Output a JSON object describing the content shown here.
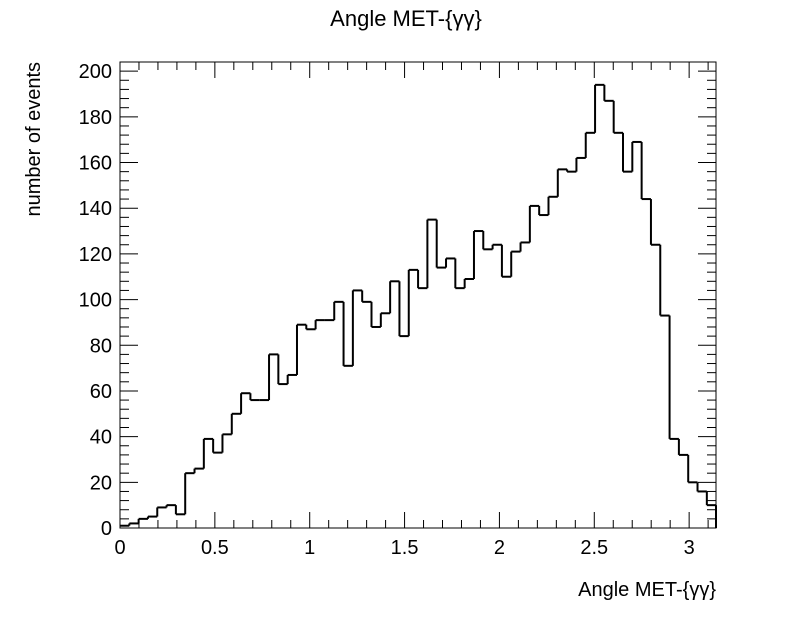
{
  "chart_data": {
    "type": "histogram",
    "title": "Angle MET-{γγ}",
    "xlabel": "Angle MET-{γγ}",
    "ylabel": "number of events",
    "xlim": [
      0,
      3.14159
    ],
    "ylim": [
      0,
      204
    ],
    "bin_width": 0.0491,
    "x_ticks": [
      0,
      0.5,
      1,
      1.5,
      2,
      2.5,
      3
    ],
    "x_tick_labels": [
      "0",
      "0.5",
      "1",
      "1.5",
      "2",
      "2.5",
      "3"
    ],
    "y_ticks": [
      0,
      20,
      40,
      60,
      80,
      100,
      120,
      140,
      160,
      180,
      200
    ],
    "y_tick_labels": [
      "0",
      "20",
      "40",
      "60",
      "80",
      "100",
      "120",
      "140",
      "160",
      "180",
      "200"
    ],
    "values": [
      1,
      2,
      4,
      5,
      9,
      10,
      6,
      24,
      26,
      39,
      33,
      41,
      50,
      59,
      56,
      56,
      76,
      63,
      67,
      89,
      87,
      91,
      91,
      99,
      71,
      104,
      99,
      88,
      94,
      108,
      84,
      113,
      105,
      135,
      114,
      118,
      105,
      109,
      130,
      122,
      124,
      110,
      121,
      125,
      141,
      137,
      145,
      157,
      156,
      162,
      173,
      194,
      187,
      173,
      156,
      169,
      144,
      124,
      93,
      39,
      32,
      20,
      16,
      10
    ],
    "grid": false,
    "legend": "none",
    "colors": {
      "line": "#000000",
      "background": "#ffffff"
    }
  }
}
